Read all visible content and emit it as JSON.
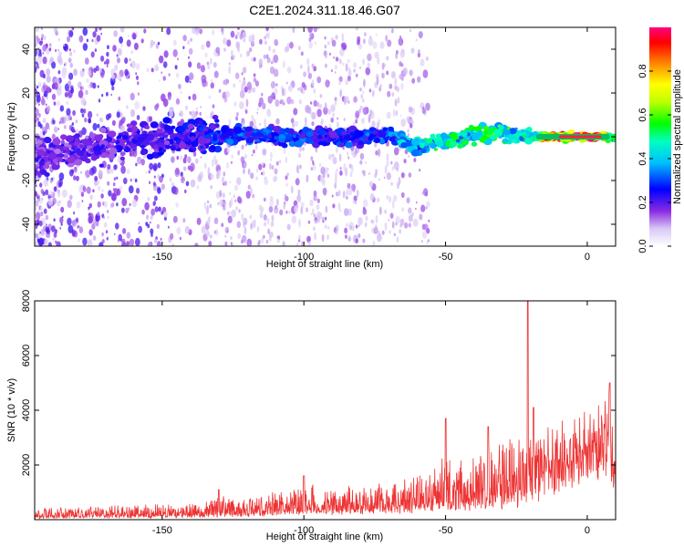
{
  "title": "C2E1.2024.311.18.46.G07",
  "colors": {
    "snr_line": "#ee3333",
    "colormap": [
      "#ffffff",
      "#d9c8f5",
      "#8a2be2",
      "#0000ff",
      "#00ffff",
      "#00ff00",
      "#ffff00",
      "#ff8000",
      "#ff0000",
      "#ff0080"
    ]
  },
  "chart_data": [
    {
      "id": "spectrogram",
      "type": "heatmap",
      "xlabel": "Height of straight line (km)",
      "ylabel": "Frequency (Hz)",
      "xlim": [
        -195,
        10
      ],
      "ylim": [
        -50,
        50
      ],
      "x_ticks": [
        -150,
        -100,
        -50,
        0
      ],
      "y_ticks": [
        -40,
        -20,
        0,
        20,
        40
      ],
      "colorbar": {
        "label": "Normalized spectral amplitude",
        "range": [
          0.0,
          1.0
        ],
        "ticks": [
          0.0,
          0.2,
          0.4,
          0.6,
          0.8
        ]
      },
      "ridge": {
        "x": [
          -195,
          -180,
          -160,
          -140,
          -130,
          -120,
          -110,
          -100,
          -90,
          -80,
          -70,
          -60,
          -50,
          -40,
          -30,
          -25,
          -20,
          -15,
          -10,
          -5,
          0,
          5,
          10
        ],
        "y": [
          -10,
          -6,
          -2,
          0,
          1,
          1,
          0,
          0,
          0,
          0,
          1,
          -4,
          -2,
          1,
          2,
          1,
          0,
          0,
          0,
          0,
          0,
          0,
          -1
        ],
        "amp": [
          0.2,
          0.2,
          0.22,
          0.25,
          0.3,
          0.32,
          0.3,
          0.3,
          0.28,
          0.3,
          0.35,
          0.45,
          0.5,
          0.55,
          0.55,
          0.5,
          0.5,
          0.85,
          0.9,
          0.95,
          0.95,
          0.9,
          0.5
        ]
      }
    },
    {
      "id": "snr",
      "type": "line",
      "xlabel": "Height of straight line (km)",
      "ylabel": "SNR (10 * v/v)",
      "xlim": [
        -195,
        10
      ],
      "ylim": [
        0,
        8000
      ],
      "x_ticks": [
        -150,
        -100,
        -50,
        0
      ],
      "y_ticks": [
        2000,
        4000,
        6000,
        8000
      ],
      "envelope": {
        "x": [
          -195,
          -170,
          -150,
          -135,
          -130,
          -120,
          -110,
          -100,
          -90,
          -80,
          -70,
          -60,
          -55,
          -50,
          -45,
          -40,
          -35,
          -30,
          -25,
          -20,
          -15,
          -10,
          -5,
          0,
          5,
          8,
          10
        ],
        "base": [
          100,
          120,
          150,
          150,
          200,
          250,
          300,
          350,
          380,
          400,
          450,
          500,
          550,
          600,
          650,
          700,
          750,
          850,
          1000,
          1400,
          1700,
          2200,
          2700,
          3200,
          3600,
          3700,
          1800
        ],
        "amp": [
          350,
          400,
          450,
          500,
          800,
          600,
          800,
          1000,
          900,
          900,
          1000,
          1200,
          1500,
          1800,
          1900,
          2000,
          2100,
          2300,
          2400,
          2000,
          2000,
          1800,
          1500,
          1200,
          1000,
          1200,
          800
        ]
      },
      "spikes": [
        {
          "x": -130,
          "y": 1100
        },
        {
          "x": -100,
          "y": 1600
        },
        {
          "x": -50,
          "y": 3700
        },
        {
          "x": -35,
          "y": 3400
        },
        {
          "x": -21,
          "y": 8000
        },
        {
          "x": -19,
          "y": 4100
        },
        {
          "x": 8,
          "y": 5000
        }
      ]
    }
  ]
}
